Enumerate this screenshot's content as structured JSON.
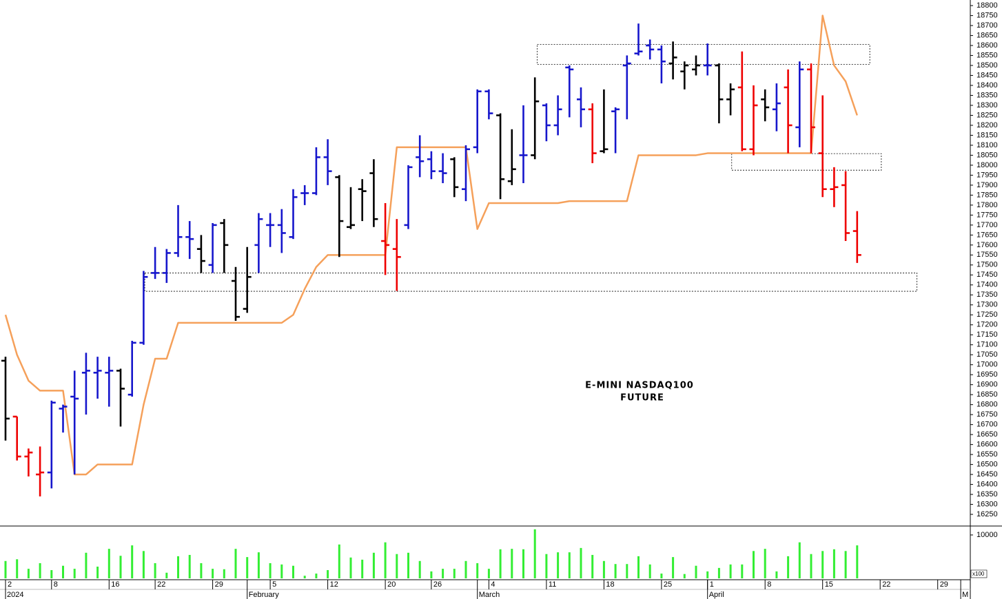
{
  "chart_data": {
    "type": "ohlc",
    "categories": [
      "2",
      null,
      null,
      null,
      "8",
      null,
      null,
      null,
      null,
      "16",
      null,
      null,
      null,
      "22",
      null,
      null,
      null,
      null,
      "29",
      null,
      null,
      null,
      null,
      "5",
      null,
      null,
      null,
      null,
      "12",
      null,
      null,
      null,
      null,
      "20",
      null,
      null,
      null,
      "26",
      null,
      null,
      null,
      null,
      "4",
      null,
      null,
      null,
      null,
      "11",
      null,
      null,
      null,
      null,
      "18",
      null,
      null,
      null,
      null,
      "25",
      null,
      null,
      null,
      "1",
      null,
      null,
      null,
      null,
      "8",
      null,
      null,
      null,
      null,
      "15",
      null,
      null,
      null,
      null,
      "22",
      null,
      null,
      null,
      null,
      "29",
      null,
      null
    ],
    "periods": [
      "2024",
      null,
      null,
      null,
      null,
      null,
      null,
      null,
      null,
      null,
      null,
      null,
      null,
      null,
      null,
      null,
      null,
      null,
      null,
      null,
      null,
      "February",
      null,
      null,
      null,
      null,
      null,
      null,
      null,
      null,
      null,
      null,
      null,
      null,
      null,
      null,
      null,
      null,
      null,
      null,
      null,
      "March",
      null,
      null,
      null,
      null,
      null,
      null,
      null,
      null,
      null,
      null,
      null,
      null,
      null,
      null,
      null,
      null,
      null,
      null,
      null,
      "April",
      null,
      null,
      null,
      null,
      null,
      null,
      null,
      null,
      null,
      null,
      null,
      null,
      null,
      null,
      null,
      null,
      null,
      null,
      null,
      null,
      null,
      "M"
    ],
    "open": [
      17020,
      16740,
      16540,
      16450,
      16460,
      16780,
      16840,
      16960,
      16960,
      16960,
      16970,
      16850,
      17110,
      17460,
      17460,
      17560,
      17640,
      17580,
      17500,
      17710,
      17420,
      17280,
      17600,
      17700,
      17700,
      17640,
      17860,
      17860,
      18040,
      17940,
      17690,
      17880,
      17960,
      17620,
      17580,
      17700,
      18040,
      18030,
      17970,
      18030,
      17880,
      18090,
      18370,
      18250,
      17920,
      18050,
      18050,
      18300,
      18200,
      18490,
      18330,
      18280,
      18070,
      18270,
      18500,
      18560,
      18600,
      18580,
      18510,
      18470,
      18480,
      18500,
      18500,
      18330,
      18390,
      18080,
      18330,
      18280,
      18390,
      18190,
      18480,
      18060,
      17880,
      17900,
      17670,
      null,
      null,
      null,
      null,
      null,
      null,
      null,
      null,
      null
    ],
    "high": [
      17040,
      16740,
      16580,
      16590,
      16820,
      16800,
      16970,
      17060,
      17040,
      17040,
      16980,
      17120,
      17470,
      17590,
      17580,
      17800,
      17720,
      17650,
      17710,
      17730,
      17490,
      17590,
      17760,
      17760,
      17780,
      17880,
      17900,
      18090,
      18130,
      17950,
      17890,
      17930,
      18030,
      17810,
      17730,
      18000,
      18150,
      18070,
      18060,
      18040,
      18100,
      18380,
      18380,
      18260,
      18180,
      18300,
      18440,
      18310,
      18350,
      18500,
      18390,
      18310,
      18380,
      18290,
      18550,
      18710,
      18630,
      18600,
      18620,
      18520,
      18550,
      18610,
      18510,
      18410,
      18570,
      18400,
      18380,
      18410,
      18480,
      18520,
      18510,
      18350,
      17990,
      17970,
      17770,
      null,
      null,
      null,
      null,
      null,
      null,
      null,
      null,
      null
    ],
    "low": [
      16620,
      16520,
      16440,
      16340,
      16380,
      16660,
      16450,
      16750,
      16830,
      16790,
      16690,
      16840,
      17100,
      17430,
      17410,
      17540,
      17530,
      17460,
      17460,
      17460,
      17220,
      17260,
      17460,
      17590,
      17560,
      17630,
      17800,
      17850,
      17900,
      17540,
      17680,
      17720,
      17690,
      17450,
      17370,
      17680,
      17940,
      17930,
      17910,
      17840,
      17820,
      18060,
      18230,
      17830,
      17900,
      17910,
      18030,
      18120,
      18150,
      18240,
      18190,
      18010,
      18060,
      18060,
      18230,
      18550,
      18530,
      18410,
      18430,
      18380,
      18450,
      18450,
      18210,
      18250,
      18070,
      18050,
      18220,
      18170,
      18060,
      18090,
      18060,
      17840,
      17790,
      17620,
      17510,
      null,
      null,
      null,
      null,
      null,
      null,
      null,
      null,
      null
    ],
    "close": [
      16730,
      16540,
      16560,
      16460,
      16810,
      16790,
      16830,
      16970,
      16970,
      16970,
      16880,
      17110,
      17440,
      17460,
      17560,
      17640,
      17630,
      17520,
      17700,
      17600,
      17240,
      17440,
      17730,
      17700,
      17660,
      17840,
      17860,
      18040,
      17970,
      17720,
      17700,
      17870,
      17730,
      17600,
      17540,
      17990,
      18020,
      17970,
      17960,
      17890,
      18080,
      18370,
      18260,
      17930,
      17980,
      18050,
      18320,
      18200,
      18280,
      18480,
      18280,
      18060,
      18080,
      18280,
      18510,
      18570,
      18580,
      18520,
      18540,
      18500,
      18500,
      18500,
      18330,
      18380,
      18080,
      18300,
      18290,
      18310,
      18200,
      18480,
      18190,
      17880,
      17890,
      17660,
      17550,
      null,
      null,
      null,
      null,
      null,
      null,
      null,
      null,
      null
    ],
    "bar_colors": [
      "#000000",
      "#ee0000",
      "#ee0000",
      "#ee0000",
      "#1616cc",
      "#1616cc",
      "#1616cc",
      "#1616cc",
      "#1616cc",
      "#1616cc",
      "#000000",
      "#1616cc",
      "#1616cc",
      "#1616cc",
      "#1616cc",
      "#1616cc",
      "#1616cc",
      "#000000",
      "#1616cc",
      "#000000",
      "#000000",
      "#000000",
      "#1616cc",
      "#1616cc",
      "#1616cc",
      "#1616cc",
      "#1616cc",
      "#1616cc",
      "#1616cc",
      "#000000",
      "#000000",
      "#000000",
      "#000000",
      "#ee0000",
      "#ee0000",
      "#1616cc",
      "#1616cc",
      "#1616cc",
      "#1616cc",
      "#000000",
      "#1616cc",
      "#1616cc",
      "#1616cc",
      "#000000",
      "#000000",
      "#1616cc",
      "#000000",
      "#1616cc",
      "#1616cc",
      "#1616cc",
      "#1616cc",
      "#ee0000",
      "#000000",
      "#1616cc",
      "#1616cc",
      "#1616cc",
      "#1616cc",
      "#1616cc",
      "#000000",
      "#000000",
      "#000000",
      "#1616cc",
      "#000000",
      "#000000",
      "#ee0000",
      "#ee0000",
      "#000000",
      "#1616cc",
      "#ee0000",
      "#1616cc",
      "#ee0000",
      "#ee0000",
      "#ee0000",
      "#ee0000",
      "#ee0000",
      null,
      null,
      null,
      null,
      null,
      null,
      null,
      null,
      null
    ],
    "ylim": [
      16195,
      18828
    ],
    "yticks": [
      16250,
      16300,
      16350,
      16400,
      16450,
      16500,
      16550,
      16600,
      16650,
      16700,
      16750,
      16800,
      16850,
      16900,
      16950,
      17000,
      17050,
      17100,
      17150,
      17200,
      17250,
      17300,
      17350,
      17400,
      17450,
      17500,
      17550,
      17600,
      17650,
      17700,
      17750,
      17800,
      17850,
      17900,
      17950,
      18000,
      18050,
      18100,
      18150,
      18200,
      18250,
      18300,
      18350,
      18400,
      18450,
      18500,
      18550,
      18600,
      18650,
      18700,
      18750,
      18800
    ],
    "stop_line": {
      "color": "#f5a05a",
      "values": [
        17250,
        17050,
        16920,
        16870,
        16870,
        16870,
        16450,
        16450,
        16500,
        16500,
        16500,
        16500,
        16800,
        17030,
        17030,
        17210,
        17210,
        17210,
        17210,
        17210,
        17210,
        17210,
        17210,
        17210,
        17210,
        17250,
        17380,
        17490,
        17550,
        17550,
        17550,
        17550,
        17550,
        17550,
        18090,
        18090,
        18090,
        18090,
        18090,
        18090,
        18090,
        17680,
        17810,
        17810,
        17810,
        17810,
        17810,
        17810,
        17810,
        17820,
        17820,
        17820,
        17820,
        17820,
        17820,
        18050,
        18050,
        18050,
        18050,
        18050,
        18050,
        18060,
        18060,
        18060,
        18060,
        18060,
        18060,
        18060,
        18060,
        18060,
        18060,
        18750,
        18500,
        18420,
        18250,
        null,
        null,
        null,
        null,
        null,
        null,
        null,
        null,
        null
      ]
    },
    "zones": [
      {
        "x_start": 46.2,
        "x_end": 75.1,
        "low": 18505,
        "high": 18605
      },
      {
        "x_start": 63.1,
        "x_end": 76.1,
        "low": 17975,
        "high": 18058
      },
      {
        "x_start": 12.1,
        "x_end": 79.2,
        "low": 17368,
        "high": 17460
      }
    ],
    "annotation": [
      "E-MINI NASDAQ100",
      "FUTURE"
    ],
    "volume": {
      "color": "#33ee33",
      "unit": "x100",
      "ylim": [
        0,
        11900
      ],
      "yticks": [
        10000
      ],
      "values": [
        4000,
        4400,
        2200,
        3500,
        1900,
        2900,
        2200,
        5900,
        2700,
        6800,
        5200,
        7600,
        6300,
        3500,
        1300,
        5100,
        5400,
        3500,
        2200,
        2100,
        6800,
        4900,
        6000,
        3500,
        3200,
        2900,
        600,
        1100,
        1900,
        7800,
        4800,
        4300,
        5900,
        8300,
        5600,
        5900,
        4000,
        1600,
        2200,
        2200,
        4000,
        3500,
        2200,
        6700,
        6800,
        6700,
        11300,
        5600,
        6000,
        6000,
        7000,
        5400,
        4000,
        3300,
        3300,
        5100,
        3200,
        1100,
        4900,
        1000,
        2900,
        1600,
        2400,
        3200,
        3200,
        6300,
        6800,
        1600,
        5100,
        8300,
        5600,
        6300,
        6700,
        6300,
        7600,
        null,
        null,
        null,
        null,
        null,
        null,
        null,
        null,
        null
      ]
    }
  }
}
